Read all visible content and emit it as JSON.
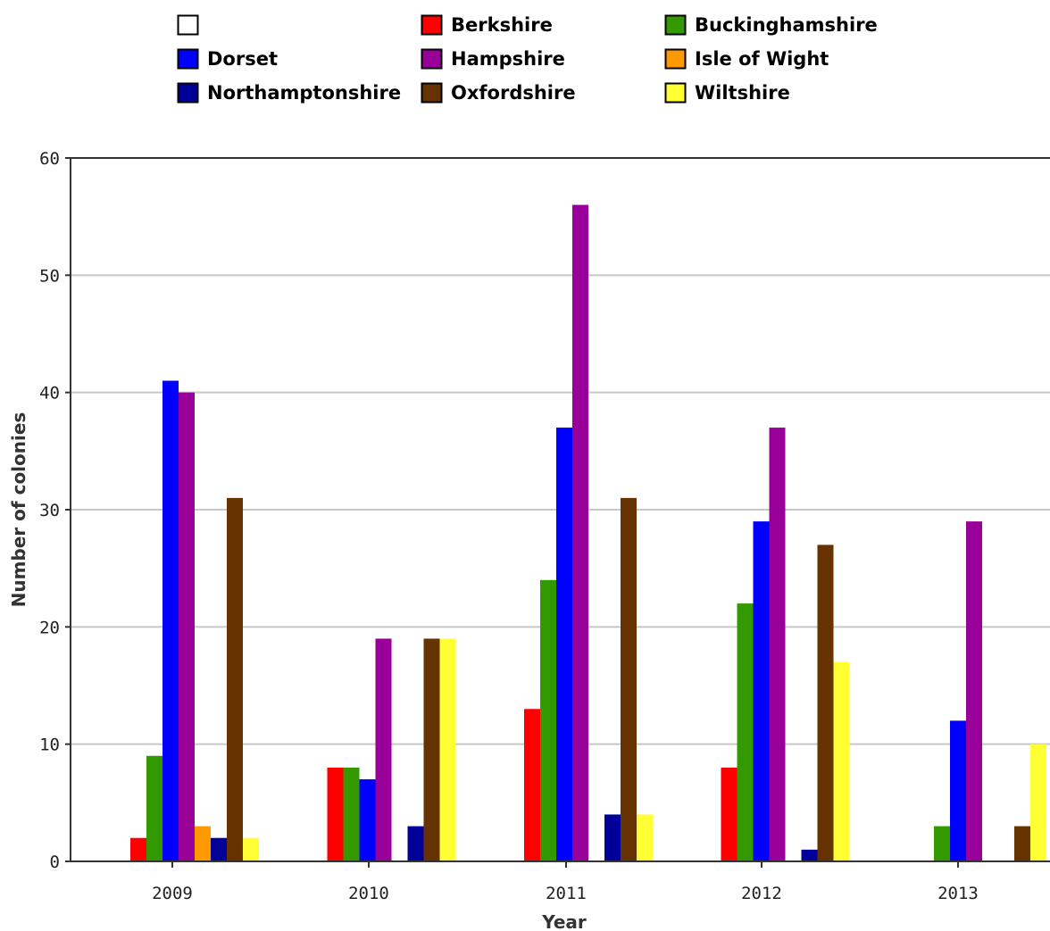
{
  "chart_data": {
    "type": "bar",
    "title": "",
    "xlabel": "Year",
    "ylabel": "Number of colonies",
    "categories": [
      "2009",
      "2010",
      "2011",
      "2012",
      "2013"
    ],
    "ylim": [
      0,
      60
    ],
    "yticks": [
      0,
      10,
      20,
      30,
      40,
      50,
      60
    ],
    "grid": "horizontal",
    "legend_placement": "top",
    "legend_entries": [
      "",
      "Berkshire",
      "Buckinghamshire",
      "Dorset",
      "Hampshire",
      "Isle of Wight",
      "Northamptonshire",
      "Oxfordshire",
      "Wiltshire"
    ],
    "series": [
      {
        "name": "",
        "color": "#ffffff",
        "values": [
          0,
          0,
          0,
          0,
          0
        ]
      },
      {
        "name": "Berkshire",
        "color": "#ff0000",
        "values": [
          2,
          8,
          13,
          8,
          0
        ]
      },
      {
        "name": "Buckinghamshire",
        "color": "#339900",
        "values": [
          9,
          8,
          24,
          22,
          3
        ]
      },
      {
        "name": "Dorset",
        "color": "#0000ff",
        "values": [
          41,
          7,
          37,
          29,
          12
        ]
      },
      {
        "name": "Hampshire",
        "color": "#990099",
        "values": [
          40,
          19,
          56,
          37,
          29
        ]
      },
      {
        "name": "Isle of Wight",
        "color": "#ff9900",
        "values": [
          3,
          0,
          0,
          0,
          0
        ]
      },
      {
        "name": "Northamptonshire",
        "color": "#000099",
        "values": [
          2,
          3,
          4,
          1,
          0
        ]
      },
      {
        "name": "Oxfordshire",
        "color": "#663300",
        "values": [
          31,
          19,
          31,
          27,
          3
        ]
      },
      {
        "name": "Wiltshire",
        "color": "#ffff33",
        "values": [
          2,
          19,
          4,
          17,
          10
        ]
      }
    ]
  }
}
